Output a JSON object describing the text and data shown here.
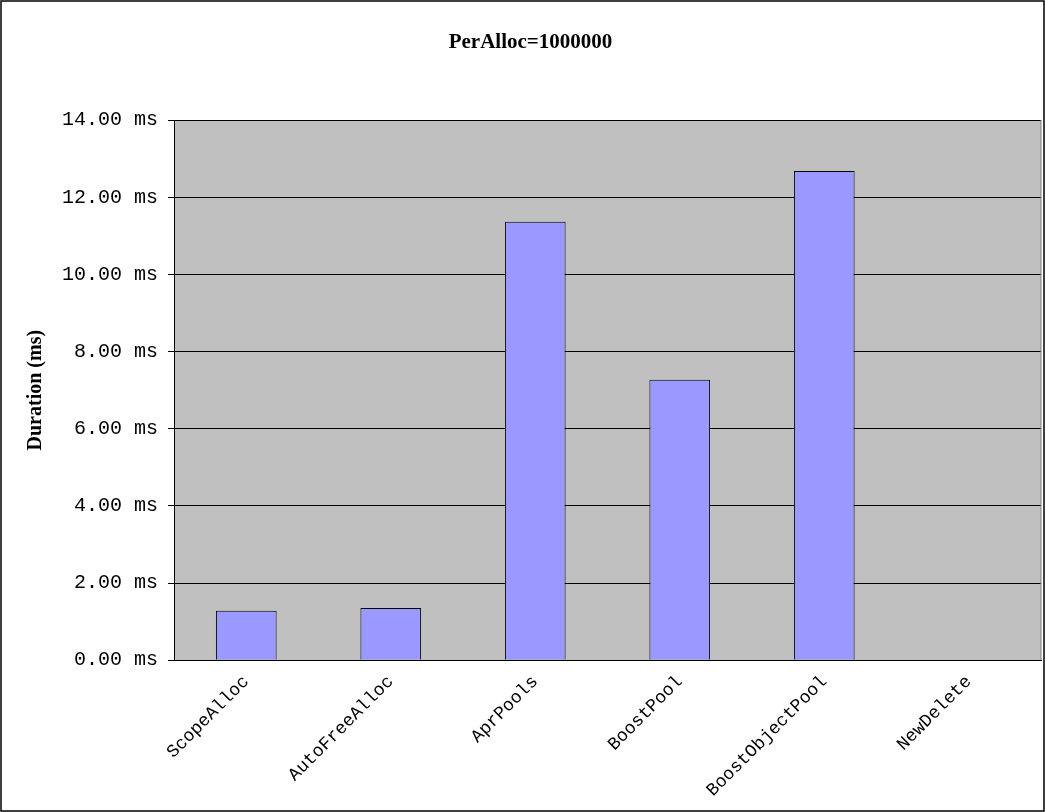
{
  "chart_data": {
    "type": "bar",
    "title": "PerAlloc=1000000",
    "ylabel": "Duration (ms)",
    "categories": [
      "ScopeAlloc",
      "AutoFreeAlloc",
      "AprPools",
      "BoostPool",
      "BoostObjectPool",
      "NewDelete"
    ],
    "values": [
      1.28,
      1.35,
      11.37,
      7.27,
      12.68,
      0
    ],
    "color": "#9999ff",
    "ylim": [
      0,
      14
    ],
    "yticks": [
      {
        "value": 0,
        "label": "0.00 ms"
      },
      {
        "value": 2,
        "label": "2.00 ms"
      },
      {
        "value": 4,
        "label": "4.00 ms"
      },
      {
        "value": 6,
        "label": "6.00 ms"
      },
      {
        "value": 8,
        "label": "8.00 ms"
      },
      {
        "value": 10,
        "label": "10.00 ms"
      },
      {
        "value": 12,
        "label": "12.00 ms"
      },
      {
        "value": 14,
        "label": "14.00 ms"
      }
    ],
    "grid": "y",
    "legend": false
  }
}
